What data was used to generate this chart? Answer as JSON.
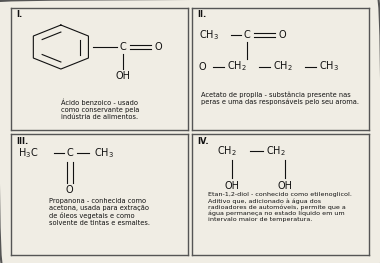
{
  "bg_color": "#f0ede4",
  "border_color": "#555555",
  "text_color": "#111111",
  "quadrant_labels": [
    "I.",
    "II.",
    "III.",
    "IV."
  ],
  "desc_I": "Ácido benzoico - usado\ncomo conservante pela\nindústria de alimentos.",
  "desc_II": "Acetato de propila - substância presente nas\nperas e uma das responsáveis pelo seu aroma.",
  "desc_III": "Propanona - conhecida como\nacetona, usada para extração\nde óleos vegetais e como\nsolvente de tintas e esmaltes.",
  "desc_IV": "Etan-1,2-diol - conhecido como etilenoglicol.\nAditivo que, adicionado à água dos\nradioadores de automóveis, permite que a\nágua permaneça no estado líquido em um\nintervalo maior de temperatura.",
  "fs_formula": 7.0,
  "fs_desc": 4.8,
  "fs_label": 6.0,
  "figw": 3.8,
  "figh": 2.63,
  "dpi": 100
}
